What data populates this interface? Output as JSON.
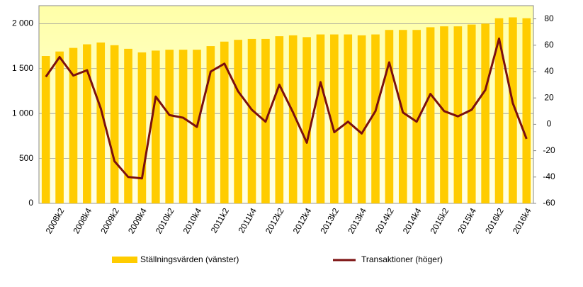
{
  "chart_data": {
    "type": "bar-line",
    "categories": [
      "2008k1",
      "2008k2",
      "2008k3",
      "2008k4",
      "2009k1",
      "2009k2",
      "2009k3",
      "2009k4",
      "2010k1",
      "2010k2",
      "2010k3",
      "2010k4",
      "2011k1",
      "2011k2",
      "2011k3",
      "2011k4",
      "2012k1",
      "2012k2",
      "2012k3",
      "2012k4",
      "2013k1",
      "2013k2",
      "2013k3",
      "2013k4",
      "2014k1",
      "2014k2",
      "2014k3",
      "2014k4",
      "2015k1",
      "2015k2",
      "2015k3",
      "2015k4",
      "2016k1",
      "2016k2",
      "2016k3",
      "2016k4"
    ],
    "category_labels": [
      null,
      "2008k2",
      null,
      "2008k4",
      null,
      "2009k2",
      null,
      "2009k4",
      null,
      "2010k2",
      null,
      "2010k4",
      null,
      "2011k2",
      null,
      "2011k4",
      null,
      "2012k2",
      null,
      "2012k4",
      null,
      "2013k2",
      null,
      "2013k4",
      null,
      "2014k2",
      null,
      "2014k4",
      null,
      "2015k2",
      null,
      "2015k4",
      null,
      "2016k2",
      null,
      "2016k4"
    ],
    "series": [
      {
        "name": "Ställningsvärden (vänster)",
        "type": "bar",
        "color": "#ffcc00",
        "values": [
          1640,
          1690,
          1730,
          1770,
          1790,
          1760,
          1720,
          1680,
          1700,
          1710,
          1710,
          1710,
          1750,
          1800,
          1820,
          1830,
          1830,
          1860,
          1870,
          1850,
          1880,
          1880,
          1880,
          1870,
          1880,
          1930,
          1930,
          1930,
          1960,
          1970,
          1970,
          1990,
          2000,
          2060,
          2070,
          2060
        ]
      },
      {
        "name": "Transaktioner (höger)",
        "type": "line",
        "axis": "y2",
        "color": "#7b0f0f",
        "values": [
          36,
          51,
          37,
          41,
          12,
          -28,
          -40,
          -41,
          21,
          7,
          5,
          -2,
          40,
          46,
          25,
          11,
          2,
          30,
          9,
          -14,
          32,
          -6,
          2,
          -7,
          10,
          47,
          9,
          2,
          23,
          10,
          6,
          11,
          26,
          65,
          16,
          -11
        ]
      }
    ],
    "ylim": [
      0,
      2200
    ],
    "yticks": [
      0,
      500,
      {
        "value": 1000,
        "label": "1 000"
      },
      {
        "value": 1500,
        "label": "1 500"
      },
      {
        "value": 2000,
        "label": "2 000"
      }
    ],
    "y2lim": [
      -60,
      90
    ],
    "y2ticks": [
      -60,
      -40,
      -20,
      0,
      20,
      40,
      60,
      80
    ],
    "grid": true
  }
}
